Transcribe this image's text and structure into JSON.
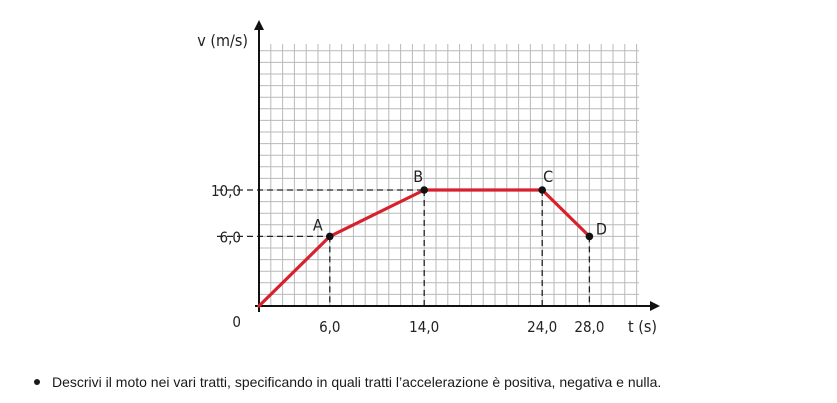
{
  "chart_data": {
    "type": "line",
    "xlabel": "t (s)",
    "ylabel": "v (m/s)",
    "origin_label": "0",
    "xlim": [
      0,
      32
    ],
    "ylim": [
      0,
      22
    ],
    "x_ticks": [
      6,
      14,
      24,
      28
    ],
    "x_tick_labels": [
      "6,0",
      "14,0",
      "24,0",
      "28,0"
    ],
    "y_ticks": [
      6,
      10
    ],
    "y_tick_labels": [
      "6,0",
      "10,0"
    ],
    "grid": true,
    "line_color": "#d7222d",
    "points": [
      {
        "x": 0,
        "y": 0,
        "label": ""
      },
      {
        "x": 6,
        "y": 6,
        "label": "A"
      },
      {
        "x": 14,
        "y": 10,
        "label": "B"
      },
      {
        "x": 24,
        "y": 10,
        "label": "C"
      },
      {
        "x": 28,
        "y": 6,
        "label": "D"
      }
    ]
  },
  "question": {
    "text": "Descrivi il moto nei vari tratti, specificando in quali tratti l’accelerazione è positiva, negativa e nulla."
  }
}
